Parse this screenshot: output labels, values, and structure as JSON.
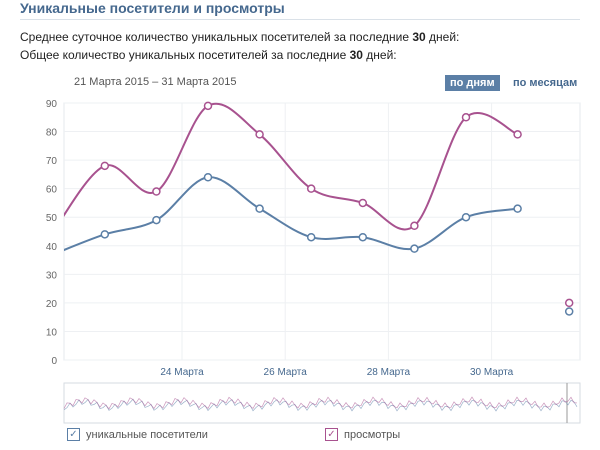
{
  "title": "Уникальные посетители и просмотры",
  "stats": {
    "avg_prefix": "Среднее суточное количество уникальных посетителей за последние ",
    "avg_days": "30",
    "avg_suffix": " дней:",
    "total_prefix": "Общее количество уникальных посетителей за последние ",
    "total_days": "30",
    "total_suffix": " дней:"
  },
  "range_label": "21 Марта 2015 – 31 Марта 2015",
  "buttons": {
    "days": "по дням",
    "months": "по месяцам"
  },
  "legend": {
    "uniques": "уникальные посетители",
    "views": "просмотры"
  },
  "chart_data": {
    "type": "line",
    "x": [
      21,
      22,
      23,
      24,
      25,
      26,
      27,
      28,
      29,
      30,
      31
    ],
    "series": [
      {
        "name": "уникальные посетители",
        "color": "#5b7fa6",
        "values": [
          37,
          44,
          49,
          64,
          53,
          43,
          43,
          39,
          50,
          53,
          17
        ]
      },
      {
        "name": "просмотры",
        "color": "#a8528f",
        "values": [
          45,
          68,
          59,
          89,
          79,
          60,
          55,
          47,
          85,
          79,
          20
        ]
      }
    ],
    "yticks": [
      0,
      10,
      20,
      30,
      40,
      50,
      60,
      70,
      80,
      90
    ],
    "xtick_labels": [
      {
        "day": 24,
        "label": "24 Марта"
      },
      {
        "day": 26,
        "label": "26 Марта"
      },
      {
        "day": 28,
        "label": "28 Марта"
      },
      {
        "day": 30,
        "label": "30 Марта"
      }
    ],
    "ylim": [
      0,
      90
    ],
    "grid": true
  }
}
